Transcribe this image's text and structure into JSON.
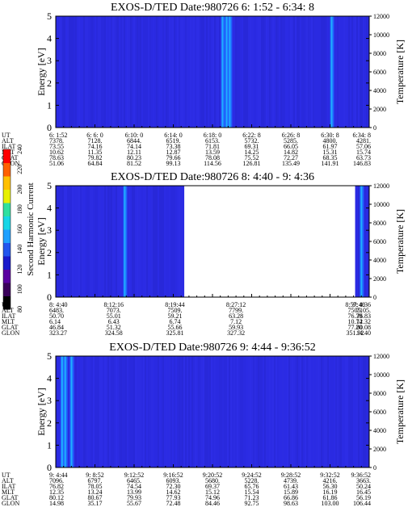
{
  "colorbar": {
    "label": "Second Harmonic Current",
    "ticks": [
      "80",
      "100",
      "120",
      "140",
      "160",
      "180",
      "200",
      "220",
      "240"
    ],
    "colors": [
      "#000000",
      "#3a005a",
      "#5a00a0",
      "#1a1acc",
      "#2255ee",
      "#1fa0ff",
      "#18d6e6",
      "#30e0a0",
      "#e8f000",
      "#ffc000",
      "#ff6000",
      "#ff0000"
    ]
  },
  "chart_data": [
    {
      "type": "heatmap",
      "title": "EXOS-D/TED   Date:980726  6: 1:52 - 6:34: 8",
      "ylabel": "Energy [eV]",
      "ylabel_right": "Temperature [K]",
      "ylim": [
        0,
        5
      ],
      "ylim_right": [
        0,
        12000
      ],
      "yticks": [
        "0",
        "1",
        "2",
        "3",
        "4",
        "5"
      ],
      "yticks_right": [
        "0",
        "2000",
        "4000",
        "6000",
        "8000",
        "10000",
        "12000"
      ],
      "data_gaps": [],
      "bright_bands": [
        0.532,
        0.545,
        0.555,
        0.88
      ],
      "table": {
        "rows": [
          "UT",
          "ALT",
          "ILAT",
          "MLT",
          "GLAT",
          "GLON"
        ],
        "columns": [
          [
            "6: 1:52",
            "7378.",
            "73.55",
            "10.62",
            "78.63",
            "51.06"
          ],
          [
            "6: 6: 0",
            "7128.",
            "74.16",
            "11.35",
            "79.82",
            "64.84"
          ],
          [
            "6:10: 0",
            "6844.",
            "74.14",
            "12.11",
            "80.23",
            "81.52"
          ],
          [
            "6:14: 0",
            "6519.",
            "73.38",
            "12.87",
            "79.66",
            "99.13"
          ],
          [
            "6:18: 0",
            "6153.",
            "71.81",
            "13.59",
            "78.08",
            "114.56"
          ],
          [
            "6:22: 8",
            "5732.",
            "69.31",
            "14.25",
            "75.52",
            "126.81"
          ],
          [
            "6:26: 8",
            "5285.",
            "66.05",
            "14.82",
            "72.27",
            "135.49"
          ],
          [
            "6:30: 8",
            "4800.",
            "61.97",
            "15.31",
            "68.35",
            "141.91"
          ],
          [
            "6:34: 8",
            "4281.",
            "57.06",
            "15.74",
            "63.73",
            "146.83"
          ]
        ]
      }
    },
    {
      "type": "heatmap",
      "title": "EXOS-D/TED   Date:980726  8: 4:40 - 9: 4:36",
      "ylabel": "Energy [eV]",
      "ylabel_right": "Temperature [K]",
      "ylim": [
        0,
        5
      ],
      "ylim_right": [
        0,
        12000
      ],
      "yticks": [
        "0",
        "1",
        "2",
        "3",
        "4",
        "5"
      ],
      "yticks_right": [
        "0",
        "2000",
        "4000",
        "6000",
        "8000",
        "10000",
        "12000"
      ],
      "data_gaps": [
        [
          0.41,
          0.955
        ]
      ],
      "bright_bands": [
        0.22,
        0.975
      ],
      "table": {
        "rows": [
          "UT",
          "ALT",
          "ILAT",
          "MLT",
          "GLAT",
          "GLON"
        ],
        "columns": [
          [
            "8: 4:40",
            "6483.",
            "50.70",
            "6.14",
            "46.84",
            "323.27"
          ],
          [
            "8:12:16",
            "7073.",
            "55.01",
            "6.43",
            "51.32",
            "324.58"
          ],
          [
            "8:19:44",
            "7509.",
            "59.21",
            "6.74",
            "55.66",
            "325.81"
          ],
          [
            "8:27:12",
            "7799.",
            "63.28",
            "7.12",
            "59.93",
            "327.32"
          ],
          [
            "8:57:40",
            "7505.",
            "76.39",
            "10.74",
            "77.20",
            "351.92"
          ],
          [
            "9: 4:36",
            "7105.",
            "76.83",
            "12.32",
            "80.08",
            "14.40"
          ]
        ]
      }
    },
    {
      "type": "heatmap",
      "title": "EXOS-D/TED   Date:980726  9: 4:44 - 9:36:52",
      "ylabel": "Energy [eV]",
      "ylabel_right": "Temperature [K]",
      "ylim": [
        0,
        5
      ],
      "ylim_right": [
        0,
        12000
      ],
      "yticks": [
        "0",
        "1",
        "2",
        "3",
        "4",
        "5"
      ],
      "yticks_right": [
        "0",
        "2000",
        "4000",
        "6000",
        "8000",
        "10000",
        "12000"
      ],
      "data_gaps": [],
      "bright_bands": [
        0.02,
        0.03,
        0.05
      ],
      "table": {
        "rows": [
          "UT",
          "ALT",
          "ILAT",
          "MLT",
          "GLAT",
          "GLON"
        ],
        "columns": [
          [
            "9: 4:44",
            "7096.",
            "76.82",
            "12.35",
            "80.12",
            "14.98"
          ],
          [
            "9: 8:52",
            "6797.",
            "78.05",
            "13.24",
            "80.67",
            "35.17"
          ],
          [
            "9:12:52",
            "6465.",
            "74.54",
            "13.99",
            "79.93",
            "55.67"
          ],
          [
            "9:16:52",
            "6093.",
            "72.30",
            "14.62",
            "77.93",
            "72.48"
          ],
          [
            "9:20:52",
            "5680.",
            "69.37",
            "15.12",
            "74.96",
            "84.46"
          ],
          [
            "9:24:52",
            "5228.",
            "65.76",
            "15.54",
            "71.23",
            "92.75"
          ],
          [
            "9:28:52",
            "4739.",
            "61.43",
            "15.89",
            "66.86",
            "98.63"
          ],
          [
            "9:32:52",
            "4216.",
            "56.30",
            "16.19",
            "61.86",
            "103.00"
          ],
          [
            "9:36:52",
            "3663.",
            "50.24",
            "16.45",
            "56.19",
            "106.44"
          ]
        ]
      }
    }
  ]
}
